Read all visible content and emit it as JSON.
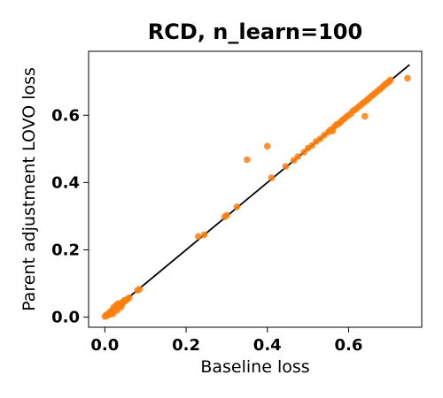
{
  "chart_data": {
    "type": "scatter",
    "title": "RCD, n_learn=100",
    "xlabel": "Baseline loss",
    "ylabel": "Parent adjustment LOVO loss",
    "xlim": [
      -0.04,
      0.78
    ],
    "ylim": [
      -0.03,
      0.79
    ],
    "xticks": [
      0.0,
      0.2,
      0.4,
      0.6
    ],
    "yticks": [
      0.0,
      0.2,
      0.4,
      0.6
    ],
    "xtick_labels": [
      "0.0",
      "0.2",
      "0.4",
      "0.6"
    ],
    "ytick_labels": [
      "0.0",
      "0.2",
      "0.4",
      "0.6"
    ],
    "grid": false,
    "reference_line": {
      "x": [
        0.0,
        0.75
      ],
      "y": [
        0.0,
        0.75
      ],
      "color": "#000000"
    },
    "marker_color": "#ff7f0e",
    "points": [
      [
        0.0,
        0.002
      ],
      [
        0.003,
        0.006
      ],
      [
        0.005,
        0.004
      ],
      [
        0.008,
        0.01
      ],
      [
        0.01,
        0.012
      ],
      [
        0.012,
        0.008
      ],
      [
        0.015,
        0.018
      ],
      [
        0.018,
        0.015
      ],
      [
        0.02,
        0.022
      ],
      [
        0.022,
        0.03
      ],
      [
        0.025,
        0.024
      ],
      [
        0.028,
        0.035
      ],
      [
        0.03,
        0.028
      ],
      [
        0.032,
        0.04
      ],
      [
        0.035,
        0.033
      ],
      [
        0.038,
        0.036
      ],
      [
        0.04,
        0.042
      ],
      [
        0.042,
        0.038
      ],
      [
        0.045,
        0.045
      ],
      [
        0.048,
        0.05
      ],
      [
        0.05,
        0.048
      ],
      [
        0.055,
        0.053
      ],
      [
        0.06,
        0.058
      ],
      [
        0.08,
        0.08
      ],
      [
        0.085,
        0.083
      ],
      [
        0.02,
        0.01
      ],
      [
        0.03,
        0.02
      ],
      [
        0.04,
        0.03
      ],
      [
        0.23,
        0.24
      ],
      [
        0.245,
        0.245
      ],
      [
        0.295,
        0.298
      ],
      [
        0.3,
        0.303
      ],
      [
        0.325,
        0.328
      ],
      [
        0.35,
        0.468
      ],
      [
        0.4,
        0.508
      ],
      [
        0.41,
        0.414
      ],
      [
        0.445,
        0.448
      ],
      [
        0.465,
        0.466
      ],
      [
        0.475,
        0.477
      ],
      [
        0.49,
        0.49
      ],
      [
        0.5,
        0.502
      ],
      [
        0.51,
        0.51
      ],
      [
        0.52,
        0.522
      ],
      [
        0.53,
        0.53
      ],
      [
        0.54,
        0.541
      ],
      [
        0.55,
        0.55
      ],
      [
        0.555,
        0.556
      ],
      [
        0.56,
        0.558
      ],
      [
        0.565,
        0.566
      ],
      [
        0.57,
        0.572
      ],
      [
        0.575,
        0.574
      ],
      [
        0.58,
        0.58
      ],
      [
        0.585,
        0.586
      ],
      [
        0.59,
        0.59
      ],
      [
        0.595,
        0.596
      ],
      [
        0.6,
        0.6
      ],
      [
        0.605,
        0.604
      ],
      [
        0.61,
        0.612
      ],
      [
        0.615,
        0.616
      ],
      [
        0.62,
        0.62
      ],
      [
        0.625,
        0.626
      ],
      [
        0.63,
        0.63
      ],
      [
        0.635,
        0.636
      ],
      [
        0.64,
        0.64
      ],
      [
        0.645,
        0.645
      ],
      [
        0.65,
        0.65
      ],
      [
        0.655,
        0.656
      ],
      [
        0.66,
        0.66
      ],
      [
        0.665,
        0.666
      ],
      [
        0.67,
        0.67
      ],
      [
        0.675,
        0.676
      ],
      [
        0.68,
        0.68
      ],
      [
        0.685,
        0.686
      ],
      [
        0.69,
        0.692
      ],
      [
        0.695,
        0.696
      ],
      [
        0.7,
        0.7
      ],
      [
        0.703,
        0.705
      ],
      [
        0.56,
        0.553
      ],
      [
        0.64,
        0.597
      ],
      [
        0.745,
        0.71
      ]
    ]
  }
}
